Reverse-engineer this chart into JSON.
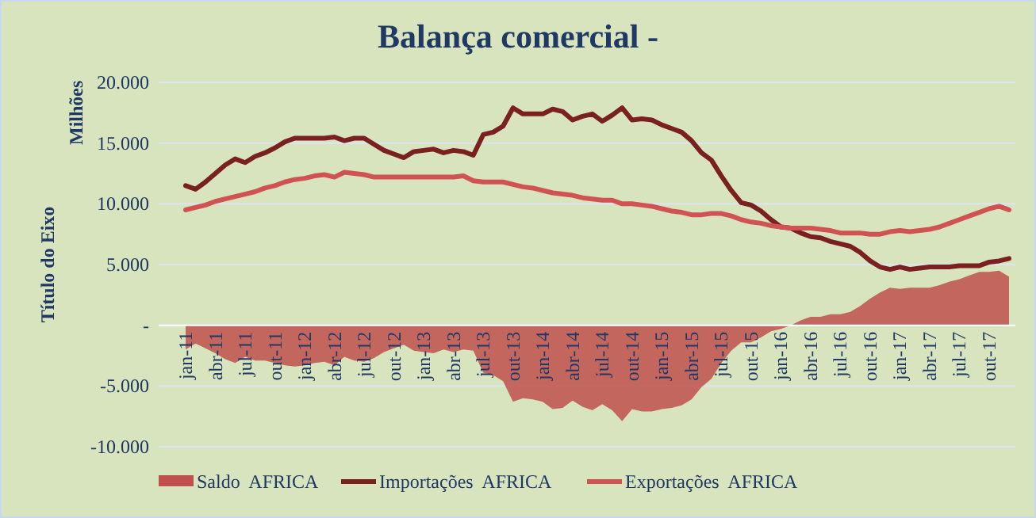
{
  "chart_data": {
    "type": "line",
    "title": "Balança comercial -",
    "ylabel": "Título do Eixo",
    "annotations": [
      "Milhões"
    ],
    "categories": [
      "jan-11",
      null,
      null,
      "abr-11",
      null,
      null,
      "jul-11",
      null,
      null,
      "out-11",
      null,
      null,
      "jan-12",
      null,
      null,
      "abr-12",
      null,
      null,
      "jul-12",
      null,
      null,
      "out-12",
      null,
      null,
      "jan-13",
      null,
      null,
      "abr-13",
      null,
      null,
      "jul-13",
      null,
      null,
      "out-13",
      null,
      null,
      "jan-14",
      null,
      null,
      "abr-14",
      null,
      null,
      "jul-14",
      null,
      null,
      "out-14",
      null,
      null,
      "jan-15",
      null,
      null,
      "abr-15",
      null,
      null,
      "jul-15",
      null,
      null,
      "out-15",
      null,
      null,
      "jan-16",
      null,
      null,
      "abr-16",
      null,
      null,
      "jul-16",
      null,
      null,
      "out-16",
      null,
      null,
      "jan-17",
      null,
      null,
      "abr-17",
      null,
      null,
      "jul-17",
      null,
      null,
      "out-17",
      null,
      null
    ],
    "ylim": [
      -10000,
      20000
    ],
    "yticks": [
      {
        "value": -10000,
        "label": "-10.000"
      },
      {
        "value": -5000,
        "label": "-5.000"
      },
      {
        "value": 0,
        "label": "-"
      },
      {
        "value": 5000,
        "label": "5.000"
      },
      {
        "value": 10000,
        "label": "10.000"
      },
      {
        "value": 15000,
        "label": "15.000"
      },
      {
        "value": 20000,
        "label": "20.000"
      }
    ],
    "grid": "y",
    "legend": "bottom",
    "line_style": "solid",
    "marker": "none",
    "series": [
      {
        "name": "Saldo  AFRICA",
        "type": "area",
        "color": "#c0504d",
        "values": [
          -2000,
          -1500,
          -1900,
          -2300,
          -2800,
          -3100,
          -2600,
          -2900,
          -2900,
          -3100,
          -3300,
          -3400,
          -3300,
          -3100,
          -3000,
          -3300,
          -2600,
          -2900,
          -3000,
          -2700,
          -2200,
          -1900,
          -1600,
          -2100,
          -2200,
          -2300,
          -2000,
          -2200,
          -2000,
          -2100,
          -3900,
          -4100,
          -4600,
          -6300,
          -6000,
          -6100,
          -6300,
          -6900,
          -6800,
          -6200,
          -6700,
          -7000,
          -6500,
          -7000,
          -7900,
          -6900,
          -7100,
          -7100,
          -6900,
          -6800,
          -6600,
          -6100,
          -5100,
          -4400,
          -3100,
          -2100,
          -1400,
          -1400,
          -1000,
          -500,
          -300,
          0,
          400,
          700,
          700,
          900,
          900,
          1100,
          1600,
          2200,
          2700,
          3100,
          3000,
          3100,
          3100,
          3100,
          3300,
          3600,
          3800,
          4100,
          4400,
          4400,
          4500,
          4000
        ]
      },
      {
        "name": "Importações  AFRICA",
        "color": "#7b2020",
        "values": [
          11500,
          11200,
          11800,
          12500,
          13200,
          13700,
          13400,
          13900,
          14200,
          14600,
          15100,
          15400,
          15400,
          15400,
          15400,
          15500,
          15200,
          15400,
          15400,
          14900,
          14400,
          14100,
          13800,
          14300,
          14400,
          14500,
          14200,
          14400,
          14300,
          14000,
          15700,
          15900,
          16400,
          17900,
          17400,
          17400,
          17400,
          17800,
          17600,
          16900,
          17200,
          17400,
          16800,
          17300,
          17900,
          16900,
          17000,
          16900,
          16500,
          16200,
          15900,
          15200,
          14200,
          13600,
          12300,
          11100,
          10100,
          9900,
          9400,
          8700,
          8100,
          8000,
          7600,
          7300,
          7200,
          6900,
          6700,
          6500,
          6000,
          5300,
          4800,
          4600,
          4800,
          4600,
          4700,
          4800,
          4800,
          4800,
          4900,
          4900,
          4900,
          5200,
          5300,
          5500
        ]
      },
      {
        "name": "Exportações  AFRICA",
        "color": "#d05252",
        "values": [
          9500,
          9700,
          9900,
          10200,
          10400,
          10600,
          10800,
          11000,
          11300,
          11500,
          11800,
          12000,
          12100,
          12300,
          12400,
          12200,
          12600,
          12500,
          12400,
          12200,
          12200,
          12200,
          12200,
          12200,
          12200,
          12200,
          12200,
          12200,
          12300,
          11900,
          11800,
          11800,
          11800,
          11600,
          11400,
          11300,
          11100,
          10900,
          10800,
          10700,
          10500,
          10400,
          10300,
          10300,
          10000,
          10000,
          9900,
          9800,
          9600,
          9400,
          9300,
          9100,
          9100,
          9200,
          9200,
          9000,
          8700,
          8500,
          8400,
          8200,
          8100,
          8000,
          8000,
          8000,
          7900,
          7800,
          7600,
          7600,
          7600,
          7500,
          7500,
          7700,
          7800,
          7700,
          7800,
          7900,
          8100,
          8400,
          8700,
          9000,
          9300,
          9600,
          9800,
          9500
        ]
      }
    ]
  }
}
